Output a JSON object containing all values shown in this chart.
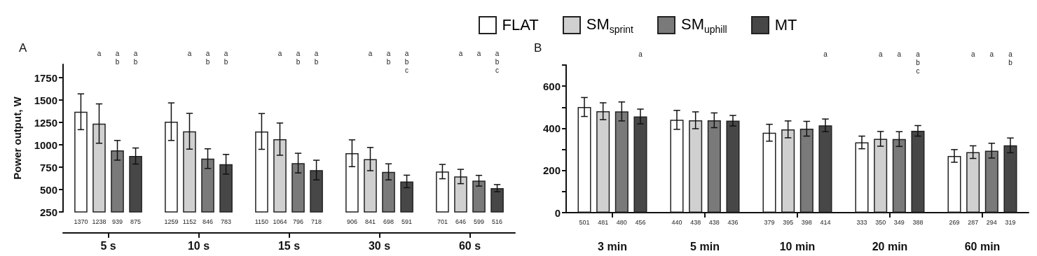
{
  "chart_data": [
    {
      "type": "bar",
      "title": "A",
      "ylabel": "Power output, W",
      "categories": [
        "5 s",
        "10 s",
        "15 s",
        "30 s",
        "60 s"
      ],
      "series": [
        {
          "name": "FLAT",
          "color": "#ffffff",
          "values": [
            1370,
            1259,
            1150,
            906,
            701
          ],
          "errors": [
            200,
            210,
            200,
            150,
            80
          ]
        },
        {
          "name": "SM$_{sprint}$",
          "color": "#d0d0d0",
          "values": [
            1238,
            1152,
            1064,
            841,
            646
          ],
          "errors": [
            220,
            200,
            180,
            130,
            80
          ]
        },
        {
          "name": "SM$_{uphill}$",
          "color": "#7a7a7a",
          "values": [
            939,
            846,
            796,
            698,
            599
          ],
          "errors": [
            110,
            110,
            110,
            90,
            60
          ]
        },
        {
          "name": "MT",
          "color": "#474747",
          "values": [
            875,
            783,
            718,
            591,
            516
          ],
          "errors": [
            90,
            110,
            110,
            70,
            40
          ]
        }
      ],
      "ylim": [
        250,
        1900
      ],
      "yticks": [
        250,
        500,
        750,
        1000,
        1250,
        1500,
        1750
      ],
      "data_labels": true,
      "grid": false,
      "legend": "top",
      "annotations": [
        "a",
        "a\nb",
        "a\nb",
        "a",
        "a\nb",
        "a\nb",
        "a",
        "a\nb",
        "a\nb",
        "a",
        "a\nb",
        "a\nb\nc",
        "a",
        "a",
        "a\nb\nc"
      ]
    },
    {
      "type": "bar",
      "title": "B",
      "categories": [
        "3 min",
        "5 min",
        "10 min",
        "20 min",
        "60 min"
      ],
      "series": [
        {
          "name": "FLAT",
          "color": "#ffffff",
          "values": [
            501,
            440,
            379,
            333,
            269
          ],
          "errors": [
            45,
            45,
            40,
            30,
            30
          ]
        },
        {
          "name": "SM$_{sprint}$",
          "color": "#d0d0d0",
          "values": [
            481,
            438,
            395,
            350,
            287
          ],
          "errors": [
            40,
            40,
            40,
            35,
            30
          ]
        },
        {
          "name": "SM$_{uphill}$",
          "color": "#7a7a7a",
          "values": [
            480,
            438,
            398,
            349,
            294
          ],
          "errors": [
            45,
            35,
            35,
            35,
            35
          ]
        },
        {
          "name": "MT",
          "color": "#474747",
          "values": [
            456,
            436,
            414,
            388,
            319
          ],
          "errors": [
            35,
            25,
            30,
            25,
            35
          ]
        }
      ],
      "ylim": [
        0,
        700
      ],
      "yticks": [
        0,
        {
          "value": 100,
          "label": null
        },
        200,
        {
          "value": 300,
          "label": null
        },
        400,
        {
          "value": 500,
          "label": null
        },
        600,
        {
          "value": 700,
          "label": null
        }
      ],
      "data_labels": true,
      "grid": false,
      "legend": "top",
      "annotations": [
        "a",
        "a",
        "a",
        "a",
        "a\nb\nc",
        "a",
        "a",
        "a\nb"
      ]
    }
  ]
}
